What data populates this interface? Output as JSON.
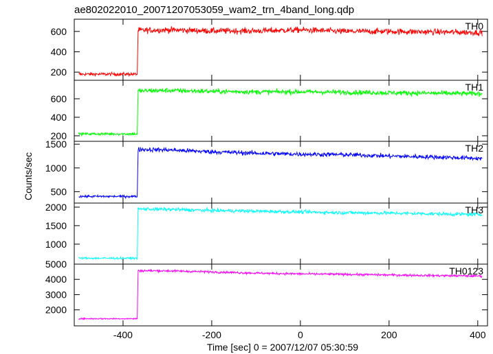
{
  "chart_data": {
    "type": "line",
    "title": "ae802022010_20071207053059_wam2_trn_4band_long.qdp",
    "xlabel": "Time [sec] 0 = 2007/12/07 05:30:59",
    "ylabel": "Counts/sec",
    "xlim": [
      -510,
      422
    ],
    "x_ticks": [
      -400,
      -200,
      0,
      200,
      400
    ],
    "grid": false,
    "legend": "none",
    "panels": [
      {
        "name": "TH0",
        "color": "#ff0000",
        "ylim": [
          120,
          720
        ],
        "y_ticks": [
          200,
          400,
          600
        ],
        "x": [
          -500,
          -367,
          -366.9,
          -300,
          -200,
          -100,
          0,
          100,
          200,
          300,
          410
        ],
        "values": [
          180,
          180,
          610,
          615,
          605,
          605,
          615,
          600,
          600,
          595,
          590
        ],
        "noise": 28
      },
      {
        "name": "TH1",
        "color": "#00ff00",
        "ylim": [
          140,
          800
        ],
        "y_ticks": [
          200,
          400,
          600
        ],
        "x": [
          -500,
          -367,
          -366.9,
          -300,
          -200,
          -100,
          0,
          100,
          200,
          300,
          410
        ],
        "values": [
          220,
          220,
          685,
          690,
          680,
          675,
          675,
          670,
          665,
          660,
          655
        ],
        "noise": 25
      },
      {
        "name": "TH2",
        "color": "#0000ff",
        "ylim": [
          260,
          1560
        ],
        "y_ticks": [
          500,
          1000,
          1500
        ],
        "x": [
          -500,
          -367,
          -366.9,
          -300,
          -200,
          -100,
          0,
          100,
          200,
          300,
          410
        ],
        "values": [
          400,
          400,
          1390,
          1380,
          1340,
          1310,
          1290,
          1280,
          1250,
          1230,
          1200
        ],
        "noise": 45
      },
      {
        "name": "TH3",
        "color": "#00ffff",
        "ylim": [
          460,
          2110
        ],
        "y_ticks": [
          1000,
          1500,
          2000
        ],
        "x": [
          -500,
          -367,
          -366.9,
          -300,
          -200,
          -100,
          0,
          100,
          200,
          300,
          410
        ],
        "values": [
          620,
          620,
          1950,
          1940,
          1910,
          1890,
          1870,
          1850,
          1840,
          1820,
          1800
        ],
        "noise": 45
      },
      {
        "name": "TH0123",
        "color": "#ff00ff",
        "ylim": [
          950,
          5000
        ],
        "y_ticks": [
          2000,
          3000,
          4000,
          5000
        ],
        "x": [
          -500,
          -367,
          -366.9,
          -300,
          -200,
          -100,
          0,
          100,
          200,
          300,
          410
        ],
        "values": [
          1420,
          1420,
          4570,
          4560,
          4490,
          4410,
          4360,
          4330,
          4290,
          4250,
          4220
        ],
        "noise": 70
      }
    ]
  }
}
